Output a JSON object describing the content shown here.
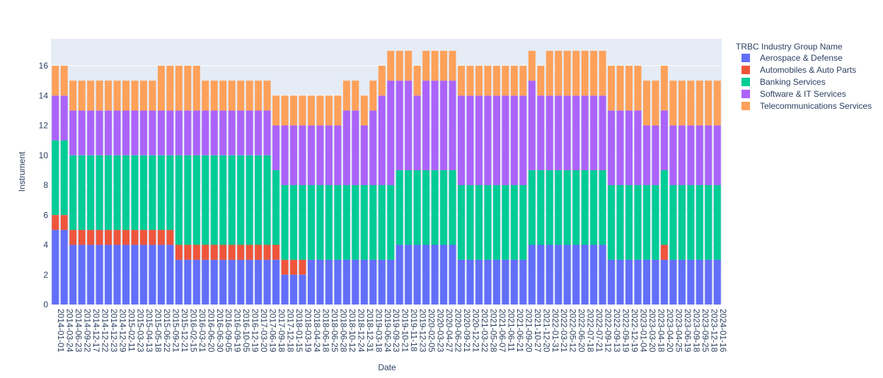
{
  "chart_data": {
    "type": "stacked_bar",
    "x_label": "Date",
    "y_label": "Instrument",
    "legend_title": "TRBC Industry Group Name",
    "legend_position": "right",
    "categories": [
      "2014-01-01",
      "2014-03-24",
      "2014-06-23",
      "2014-09-22",
      "2014-12-17",
      "2014-12-22",
      "2014-12-23",
      "2014-12-29",
      "2015-02-11",
      "2015-03-23",
      "2015-04-13",
      "2015-05-18",
      "2015-06-22",
      "2015-09-21",
      "2015-12-21",
      "2016-02-15",
      "2016-03-21",
      "2016-06-20",
      "2016-06-30",
      "2016-09-05",
      "2016-09-19",
      "2016-10-05",
      "2016-12-19",
      "2017-03-20",
      "2017-06-19",
      "2017-09-18",
      "2017-12-18",
      "2018-01-15",
      "2018-03-19",
      "2018-04-24",
      "2018-06-18",
      "2018-06-25",
      "2018-06-28",
      "2018-10-12",
      "2018-12-24",
      "2018-12-31",
      "2019-03-18",
      "2019-06-24",
      "2019-09-23",
      "2019-10-21",
      "2019-11-18",
      "2019-12-23",
      "2020-02-05",
      "2020-03-23",
      "2020-04-27",
      "2020-06-22",
      "2020-09-21",
      "2020-12-21",
      "2021-03-22",
      "2021-05-28",
      "2021-06-07",
      "2021-06-11",
      "2021-06-21",
      "2021-09-20",
      "2021-10-27",
      "2021-12-20",
      "2022-01-31",
      "2022-03-21",
      "2022-05-12",
      "2022-06-20",
      "2022-07-18",
      "2022-07-21",
      "2022-09-12",
      "2022-09-13",
      "2022-09-19",
      "2022-12-19",
      "2023-01-04",
      "2023-03-20",
      "2023-04-18",
      "2023-04-20",
      "2023-04-25",
      "2023-06-19",
      "2023-09-18",
      "2023-09-25",
      "2023-12-18",
      "2024-01-16"
    ],
    "series": [
      {
        "name": "Aerospace & Defense",
        "color": "#636efa",
        "values": [
          5,
          5,
          4,
          4,
          4,
          4,
          4,
          4,
          4,
          4,
          4,
          4,
          4,
          4,
          3,
          3,
          3,
          3,
          3,
          3,
          3,
          3,
          3,
          3,
          3,
          3,
          2,
          2,
          2,
          3,
          3,
          3,
          3,
          3,
          3,
          3,
          3,
          3,
          3,
          4,
          4,
          4,
          4,
          4,
          4,
          4,
          3,
          3,
          3,
          3,
          3,
          3,
          3,
          3,
          4,
          4,
          4,
          4,
          4,
          4,
          4,
          4,
          4,
          3,
          3,
          3,
          3,
          3,
          3,
          3,
          3,
          3,
          3,
          3,
          3,
          3
        ]
      },
      {
        "name": "Automobiles & Auto Parts",
        "color": "#EF553B",
        "values": [
          1,
          1,
          1,
          1,
          1,
          1,
          1,
          1,
          1,
          1,
          1,
          1,
          1,
          1,
          1,
          1,
          1,
          1,
          1,
          1,
          1,
          1,
          1,
          1,
          1,
          1,
          1,
          1,
          1,
          0,
          0,
          0,
          0,
          0,
          0,
          0,
          0,
          0,
          0,
          0,
          0,
          0,
          0,
          0,
          0,
          0,
          0,
          0,
          0,
          0,
          0,
          0,
          0,
          0,
          0,
          0,
          0,
          0,
          0,
          0,
          0,
          0,
          0,
          0,
          0,
          0,
          0,
          0,
          0,
          1,
          0,
          0,
          0,
          0,
          0,
          0
        ]
      },
      {
        "name": "Banking Services",
        "color": "#00cc96",
        "values": [
          5,
          5,
          5,
          5,
          5,
          5,
          5,
          5,
          5,
          5,
          5,
          5,
          5,
          5,
          6,
          6,
          6,
          6,
          6,
          6,
          6,
          6,
          6,
          6,
          6,
          5,
          5,
          5,
          5,
          5,
          5,
          5,
          5,
          5,
          5,
          5,
          5,
          5,
          5,
          5,
          5,
          5,
          5,
          5,
          5,
          5,
          5,
          5,
          5,
          5,
          5,
          5,
          5,
          5,
          5,
          5,
          5,
          5,
          5,
          5,
          5,
          5,
          5,
          5,
          5,
          5,
          5,
          5,
          5,
          5,
          5,
          5,
          5,
          5,
          5,
          5
        ]
      },
      {
        "name": "Software & IT Services",
        "color": "#ab63fa",
        "values": [
          3,
          3,
          3,
          3,
          3,
          3,
          3,
          3,
          3,
          3,
          3,
          3,
          3,
          3,
          3,
          3,
          3,
          3,
          3,
          3,
          3,
          3,
          3,
          3,
          3,
          3,
          4,
          4,
          4,
          4,
          4,
          4,
          4,
          5,
          5,
          4,
          5,
          6,
          7,
          6,
          6,
          5,
          6,
          6,
          6,
          6,
          6,
          6,
          6,
          6,
          6,
          6,
          6,
          6,
          6,
          5,
          5,
          5,
          5,
          5,
          5,
          5,
          5,
          5,
          5,
          5,
          5,
          4,
          4,
          4,
          4,
          4,
          4,
          4,
          4,
          4
        ]
      },
      {
        "name": "Telecommunications Services",
        "color": "#FFA15A",
        "values": [
          2,
          2,
          2,
          2,
          2,
          2,
          2,
          2,
          2,
          2,
          2,
          2,
          3,
          3,
          3,
          3,
          3,
          2,
          2,
          2,
          2,
          2,
          2,
          2,
          2,
          2,
          2,
          2,
          2,
          2,
          2,
          2,
          2,
          2,
          2,
          2,
          2,
          2,
          2,
          2,
          2,
          2,
          2,
          2,
          2,
          2,
          2,
          2,
          2,
          2,
          2,
          2,
          2,
          2,
          2,
          2,
          3,
          3,
          3,
          3,
          3,
          3,
          3,
          3,
          3,
          3,
          3,
          3,
          3,
          3,
          3,
          3,
          3,
          3,
          3,
          3
        ]
      }
    ],
    "ylim": [
      0,
      17.8
    ],
    "yticks": [
      0,
      2,
      4,
      6,
      8,
      10,
      12,
      14,
      16
    ],
    "grid": true
  }
}
